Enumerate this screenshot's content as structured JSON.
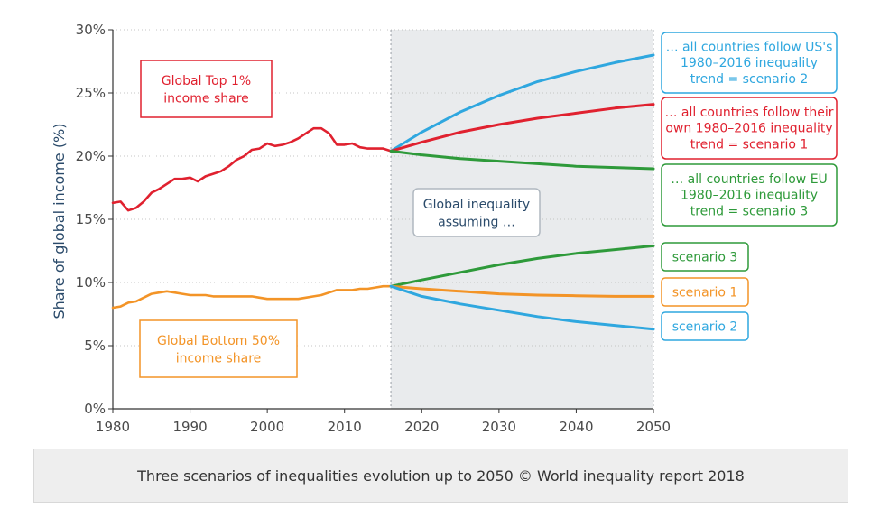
{
  "chart_data": {
    "type": "line",
    "ylabel": "Share of global income (%)",
    "xlim": [
      1980,
      2050
    ],
    "ylim": [
      0,
      30
    ],
    "x_ticks": [
      1980,
      1990,
      2000,
      2010,
      2020,
      2030,
      2040,
      2050
    ],
    "y_ticks": [
      0,
      5,
      10,
      15,
      20,
      25,
      30
    ],
    "y_tick_labels": [
      "0%",
      "5%",
      "10%",
      "15%",
      "20%",
      "25%",
      "30%"
    ],
    "projection_start": 2016,
    "grid": "horizontal dotted",
    "series": [
      {
        "key": "top1",
        "color": "#e0212f",
        "x": [
          1980,
          1981,
          1982,
          1983,
          1984,
          1985,
          1986,
          1987,
          1988,
          1989,
          1990,
          1991,
          1992,
          1993,
          1994,
          1995,
          1996,
          1997,
          1998,
          1999,
          2000,
          2001,
          2002,
          2003,
          2004,
          2005,
          2006,
          2007,
          2008,
          2009,
          2010,
          2011,
          2012,
          2013,
          2014,
          2015,
          2016
        ],
        "values": [
          16.3,
          16.4,
          15.7,
          15.9,
          16.4,
          17.1,
          17.4,
          17.8,
          18.2,
          18.2,
          18.3,
          18.0,
          18.4,
          18.6,
          18.8,
          19.2,
          19.7,
          20.0,
          20.5,
          20.6,
          21.0,
          20.8,
          20.9,
          21.1,
          21.4,
          21.8,
          22.2,
          22.2,
          21.8,
          20.9,
          20.9,
          21.0,
          20.7,
          20.6,
          20.6,
          20.6,
          20.4
        ]
      },
      {
        "key": "bottom50",
        "color": "#f39427",
        "x": [
          1980,
          1981,
          1982,
          1983,
          1984,
          1985,
          1986,
          1987,
          1988,
          1989,
          1990,
          1991,
          1992,
          1993,
          1994,
          1995,
          1996,
          1997,
          1998,
          1999,
          2000,
          2001,
          2002,
          2003,
          2004,
          2005,
          2006,
          2007,
          2008,
          2009,
          2010,
          2011,
          2012,
          2013,
          2014,
          2015,
          2016
        ],
        "values": [
          8.0,
          8.1,
          8.4,
          8.5,
          8.8,
          9.1,
          9.2,
          9.3,
          9.2,
          9.1,
          9.0,
          9.0,
          9.0,
          8.9,
          8.9,
          8.9,
          8.9,
          8.9,
          8.9,
          8.8,
          8.7,
          8.7,
          8.7,
          8.7,
          8.7,
          8.8,
          8.9,
          9.0,
          9.2,
          9.4,
          9.4,
          9.4,
          9.5,
          9.5,
          9.6,
          9.7,
          9.7
        ]
      },
      {
        "key": "top1_scenario2",
        "color": "#2fa7df",
        "x": [
          2016,
          2020,
          2025,
          2030,
          2035,
          2040,
          2045,
          2050
        ],
        "values": [
          20.4,
          21.9,
          23.5,
          24.8,
          25.9,
          26.7,
          27.4,
          28.0
        ]
      },
      {
        "key": "top1_scenario1",
        "color": "#e0212f",
        "x": [
          2016,
          2020,
          2025,
          2030,
          2035,
          2040,
          2045,
          2050
        ],
        "values": [
          20.4,
          21.1,
          21.9,
          22.5,
          23.0,
          23.4,
          23.8,
          24.1
        ]
      },
      {
        "key": "top1_scenario3",
        "color": "#2e9a3a",
        "x": [
          2016,
          2020,
          2025,
          2030,
          2035,
          2040,
          2045,
          2050
        ],
        "values": [
          20.4,
          20.1,
          19.8,
          19.6,
          19.4,
          19.2,
          19.1,
          19.0
        ]
      },
      {
        "key": "bottom50_scenario3",
        "color": "#2e9a3a",
        "x": [
          2016,
          2020,
          2025,
          2030,
          2035,
          2040,
          2045,
          2050
        ],
        "values": [
          9.7,
          10.2,
          10.8,
          11.4,
          11.9,
          12.3,
          12.6,
          12.9
        ]
      },
      {
        "key": "bottom50_scenario1",
        "color": "#f39427",
        "x": [
          2016,
          2020,
          2025,
          2030,
          2035,
          2040,
          2045,
          2050
        ],
        "values": [
          9.7,
          9.5,
          9.3,
          9.1,
          9.0,
          8.95,
          8.9,
          8.9
        ]
      },
      {
        "key": "bottom50_scenario2",
        "color": "#2fa7df",
        "x": [
          2016,
          2020,
          2025,
          2030,
          2035,
          2040,
          2045,
          2050
        ],
        "values": [
          9.7,
          8.9,
          8.3,
          7.8,
          7.3,
          6.9,
          6.6,
          6.3
        ]
      }
    ],
    "annotations": [
      {
        "key": "top1_label",
        "lines": [
          "Global Top 1%",
          "income share"
        ],
        "color": "#e0212f"
      },
      {
        "key": "bottom50_label",
        "lines": [
          "Global Bottom 50%",
          "income share"
        ],
        "color": "#f39427"
      },
      {
        "key": "assuming_label",
        "lines": [
          "Global inequality",
          "assuming …"
        ],
        "color": "#2a4a6a"
      },
      {
        "key": "scenario2_top",
        "lines": [
          "… all countries follow US's",
          "1980–2016 inequality",
          "trend = scenario 2"
        ],
        "color": "#2fa7df"
      },
      {
        "key": "scenario1_top",
        "lines": [
          "… all countries follow their",
          "own 1980–2016 inequality",
          "trend = scenario 1"
        ],
        "color": "#e0212f"
      },
      {
        "key": "scenario3_top",
        "lines": [
          "… all countries follow EU",
          "1980–2016 inequality",
          "trend = scenario 3"
        ],
        "color": "#2e9a3a"
      },
      {
        "key": "scenario3_bottom",
        "lines": [
          "scenario 3"
        ],
        "color": "#2e9a3a"
      },
      {
        "key": "scenario1_bottom",
        "lines": [
          "scenario 1"
        ],
        "color": "#f39427"
      },
      {
        "key": "scenario2_bottom",
        "lines": [
          "scenario 2"
        ],
        "color": "#2fa7df"
      }
    ]
  },
  "caption": "Three scenarios of  inequalities evolution up to 2050 © World inequality report 2018"
}
